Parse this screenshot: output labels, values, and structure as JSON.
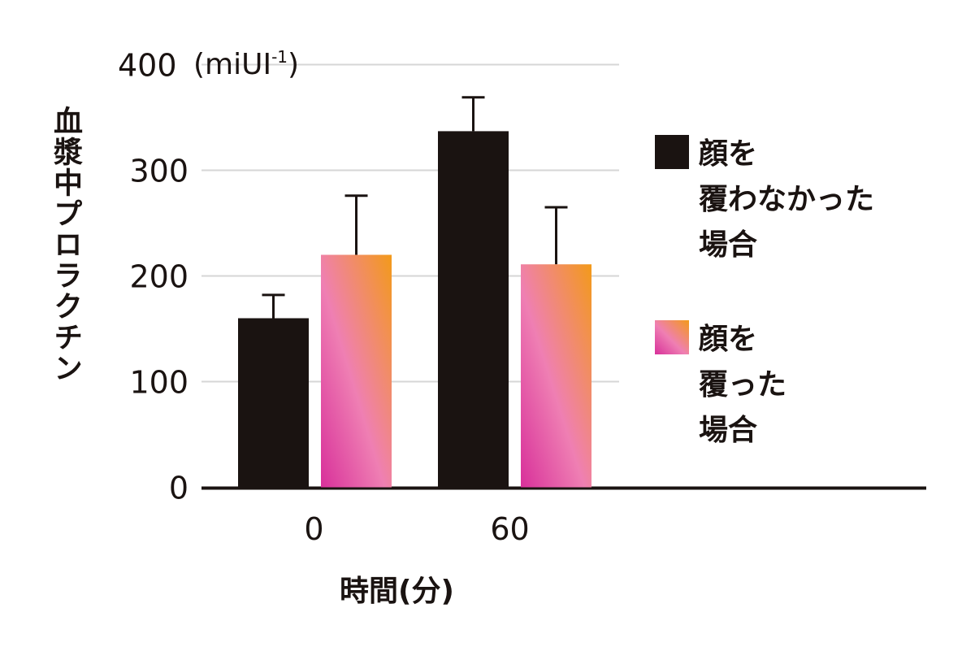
{
  "chart_data": {
    "type": "bar",
    "categories": [
      "0",
      "60"
    ],
    "xlabel": "時間(分)",
    "ylabel": "血漿中プロラクチン",
    "yunit": "(miUI",
    "yunit_sup": "-1",
    "yunit_close": ")",
    "ylim": [
      0,
      400
    ],
    "yticks": [
      0,
      100,
      200,
      300,
      400
    ],
    "grid": true,
    "legend_position": "right",
    "series": [
      {
        "name": "顔を\n覆わなかった\n場合",
        "values": [
          160,
          337
        ],
        "error_upper": [
          182,
          369
        ],
        "color": "#1a1311"
      },
      {
        "name": "顔を\n覆った\n場合",
        "values": [
          220,
          211
        ],
        "error_upper": [
          276,
          265
        ],
        "color_gradient": [
          "#d8309a",
          "#ef7fb3",
          "#f39a1a"
        ]
      }
    ]
  }
}
